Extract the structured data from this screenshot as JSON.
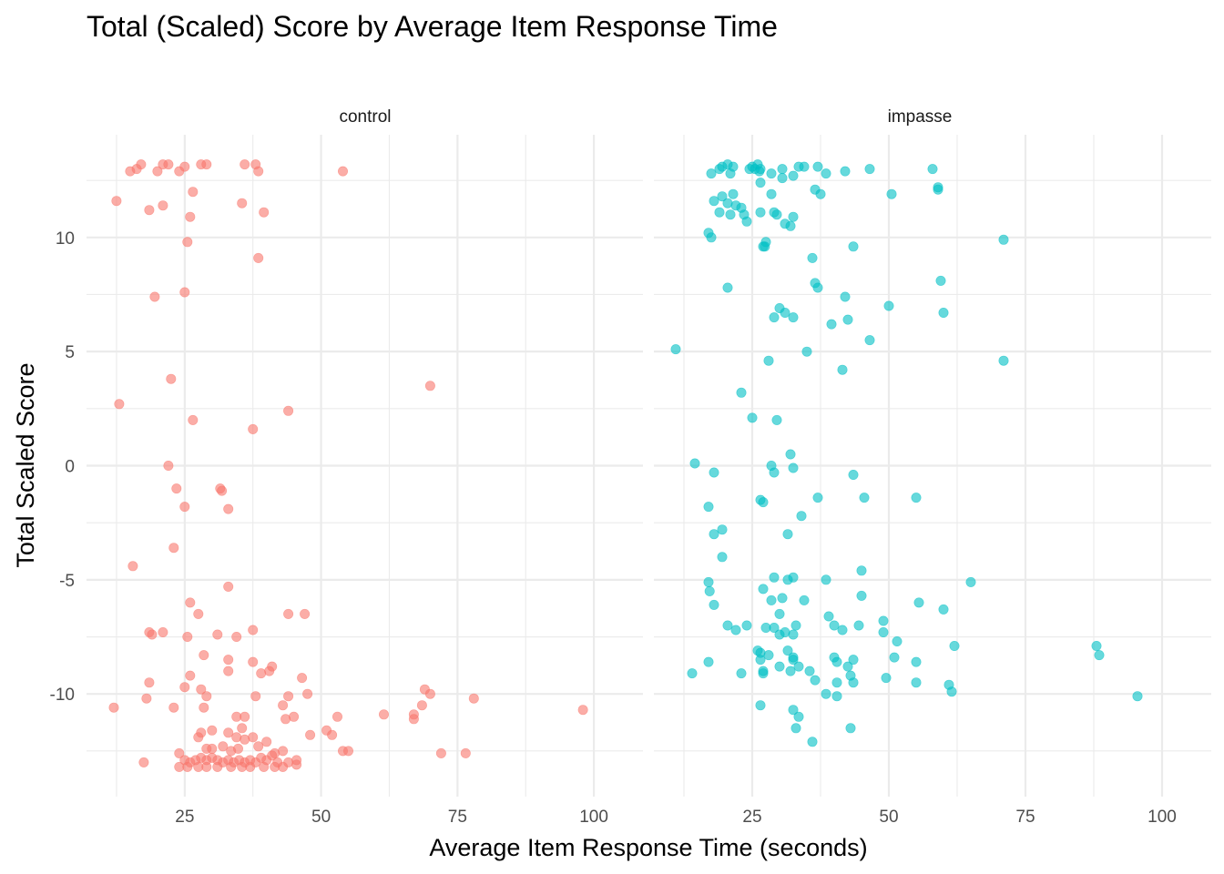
{
  "chart_data": {
    "type": "scatter",
    "title": "Total (Scaled) Score by Average Item Response Time",
    "xlabel": "Average Item Response Time (seconds)",
    "ylabel": "Total Scaled Score",
    "xlim": [
      7,
      109
    ],
    "ylim": [
      -14.5,
      14.5
    ],
    "x_ticks": [
      25,
      50,
      75,
      100
    ],
    "x_tick_labels": [
      "25",
      "50",
      "75",
      "100"
    ],
    "y_ticks": [
      -10,
      -5,
      0,
      5,
      10
    ],
    "y_tick_labels": [
      "-10",
      "-5",
      "0",
      "5",
      "10"
    ],
    "grid": true,
    "legend": "none",
    "panels": [
      {
        "name": "control",
        "color": "#F8766D",
        "points": [
          [
            15.0,
            12.9
          ],
          [
            16.2,
            13.0
          ],
          [
            17.0,
            13.2
          ],
          [
            20.0,
            12.9
          ],
          [
            21.0,
            13.2
          ],
          [
            22.0,
            13.2
          ],
          [
            24.0,
            12.9
          ],
          [
            25.0,
            13.1
          ],
          [
            28.0,
            13.2
          ],
          [
            29.0,
            13.2
          ],
          [
            36.0,
            13.2
          ],
          [
            38.0,
            13.2
          ],
          [
            38.5,
            12.9
          ],
          [
            54.0,
            12.9
          ],
          [
            12.5,
            11.6
          ],
          [
            18.5,
            11.2
          ],
          [
            21.0,
            11.4
          ],
          [
            26.5,
            12.0
          ],
          [
            26.0,
            10.9
          ],
          [
            35.5,
            11.5
          ],
          [
            39.5,
            11.1
          ],
          [
            25.5,
            9.8
          ],
          [
            38.5,
            9.1
          ],
          [
            19.5,
            7.4
          ],
          [
            25.0,
            7.6
          ],
          [
            22.5,
            3.8
          ],
          [
            70.0,
            3.5
          ],
          [
            13.0,
            2.7
          ],
          [
            26.5,
            2.0
          ],
          [
            37.5,
            1.6
          ],
          [
            44.0,
            2.4
          ],
          [
            22.0,
            0.0
          ],
          [
            23.5,
            -1.0
          ],
          [
            31.5,
            -1.0
          ],
          [
            31.8,
            -1.1
          ],
          [
            25.0,
            -1.8
          ],
          [
            33.0,
            -1.9
          ],
          [
            23.0,
            -3.6
          ],
          [
            15.5,
            -4.4
          ],
          [
            33.0,
            -5.3
          ],
          [
            26.0,
            -6.0
          ],
          [
            27.5,
            -6.5
          ],
          [
            44.0,
            -6.5
          ],
          [
            47.0,
            -6.5
          ],
          [
            18.5,
            -7.3
          ],
          [
            19.0,
            -7.4
          ],
          [
            21.0,
            -7.3
          ],
          [
            25.5,
            -7.5
          ],
          [
            31.0,
            -7.4
          ],
          [
            34.5,
            -7.5
          ],
          [
            37.5,
            -7.2
          ],
          [
            28.5,
            -8.3
          ],
          [
            33.0,
            -8.5
          ],
          [
            37.5,
            -8.6
          ],
          [
            41.0,
            -8.8
          ],
          [
            33.0,
            -9.0
          ],
          [
            26.0,
            -9.2
          ],
          [
            39.0,
            -9.1
          ],
          [
            40.5,
            -9.0
          ],
          [
            46.5,
            -9.3
          ],
          [
            18.5,
            -9.5
          ],
          [
            25.0,
            -9.7
          ],
          [
            28.0,
            -9.8
          ],
          [
            47.5,
            -10.0
          ],
          [
            69.0,
            -9.8
          ],
          [
            70.0,
            -10.0
          ],
          [
            18.0,
            -10.2
          ],
          [
            29.0,
            -10.1
          ],
          [
            38.0,
            -10.1
          ],
          [
            44.0,
            -10.1
          ],
          [
            78.0,
            -10.2
          ],
          [
            12.0,
            -10.6
          ],
          [
            23.0,
            -10.6
          ],
          [
            28.5,
            -10.6
          ],
          [
            43.0,
            -10.5
          ],
          [
            68.5,
            -10.5
          ],
          [
            61.5,
            -10.9
          ],
          [
            67.0,
            -10.9
          ],
          [
            67.0,
            -11.1
          ],
          [
            98.0,
            -10.7
          ],
          [
            34.5,
            -11.0
          ],
          [
            36.0,
            -11.0
          ],
          [
            43.5,
            -11.1
          ],
          [
            45.0,
            -11.0
          ],
          [
            53.0,
            -11.0
          ],
          [
            33.0,
            -11.7
          ],
          [
            35.5,
            -11.5
          ],
          [
            28.0,
            -11.7
          ],
          [
            30.0,
            -11.6
          ],
          [
            34.5,
            -11.9
          ],
          [
            37.5,
            -11.9
          ],
          [
            48.0,
            -11.8
          ],
          [
            51.0,
            -11.6
          ],
          [
            52.0,
            -11.8
          ],
          [
            27.5,
            -11.9
          ],
          [
            29.0,
            -12.4
          ],
          [
            30.0,
            -12.4
          ],
          [
            32.0,
            -12.3
          ],
          [
            33.5,
            -12.5
          ],
          [
            34.8,
            -12.4
          ],
          [
            36.0,
            -12.0
          ],
          [
            38.5,
            -12.3
          ],
          [
            40.0,
            -12.1
          ],
          [
            41.0,
            -12.7
          ],
          [
            41.5,
            -12.6
          ],
          [
            43.0,
            -12.5
          ],
          [
            54.0,
            -12.5
          ],
          [
            55.0,
            -12.5
          ],
          [
            24.0,
            -12.6
          ],
          [
            25.0,
            -12.9
          ],
          [
            26.0,
            -13.0
          ],
          [
            27.0,
            -12.9
          ],
          [
            28.0,
            -12.8
          ],
          [
            29.0,
            -12.9
          ],
          [
            30.0,
            -12.8
          ],
          [
            31.0,
            -12.9
          ],
          [
            32.0,
            -13.0
          ],
          [
            33.0,
            -12.9
          ],
          [
            34.0,
            -13.0
          ],
          [
            35.0,
            -12.9
          ],
          [
            36.0,
            -13.0
          ],
          [
            37.0,
            -12.9
          ],
          [
            38.0,
            -13.0
          ],
          [
            39.0,
            -12.8
          ],
          [
            40.0,
            -12.9
          ],
          [
            42.0,
            -13.0
          ],
          [
            44.0,
            -13.0
          ],
          [
            45.5,
            -12.9
          ],
          [
            24.0,
            -13.2
          ],
          [
            25.5,
            -13.2
          ],
          [
            27.5,
            -13.2
          ],
          [
            29.0,
            -13.2
          ],
          [
            31.0,
            -13.2
          ],
          [
            33.5,
            -13.2
          ],
          [
            35.5,
            -13.2
          ],
          [
            37.0,
            -13.2
          ],
          [
            39.5,
            -13.2
          ],
          [
            41.5,
            -13.2
          ],
          [
            43.0,
            -13.2
          ],
          [
            45.5,
            -13.1
          ],
          [
            17.5,
            -13.0
          ],
          [
            72.0,
            -12.6
          ],
          [
            76.5,
            -12.6
          ]
        ]
      },
      {
        "name": "impasse",
        "color": "#00BFC4",
        "points": [
          [
            17.5,
            12.8
          ],
          [
            19.0,
            13.0
          ],
          [
            19.5,
            13.1
          ],
          [
            20.5,
            13.2
          ],
          [
            21.0,
            12.8
          ],
          [
            21.5,
            13.1
          ],
          [
            24.5,
            13.0
          ],
          [
            25.0,
            13.1
          ],
          [
            25.5,
            13.0
          ],
          [
            26.0,
            13.2
          ],
          [
            26.3,
            12.9
          ],
          [
            26.5,
            13.0
          ],
          [
            28.5,
            12.8
          ],
          [
            30.5,
            13.0
          ],
          [
            32.5,
            12.7
          ],
          [
            33.5,
            13.1
          ],
          [
            34.5,
            13.1
          ],
          [
            37.0,
            13.1
          ],
          [
            38.5,
            12.8
          ],
          [
            42.0,
            12.9
          ],
          [
            46.5,
            13.0
          ],
          [
            58.0,
            13.0
          ],
          [
            26.5,
            12.4
          ],
          [
            30.5,
            12.6
          ],
          [
            36.5,
            12.1
          ],
          [
            59.0,
            12.2
          ],
          [
            59.0,
            12.1
          ],
          [
            18.0,
            11.6
          ],
          [
            19.5,
            11.8
          ],
          [
            20.5,
            11.5
          ],
          [
            21.5,
            11.9
          ],
          [
            22.0,
            11.4
          ],
          [
            23.0,
            11.3
          ],
          [
            23.5,
            11.0
          ],
          [
            24.0,
            10.7
          ],
          [
            26.5,
            11.1
          ],
          [
            28.5,
            11.9
          ],
          [
            29.0,
            11.1
          ],
          [
            29.5,
            11.0
          ],
          [
            31.0,
            10.6
          ],
          [
            32.0,
            10.5
          ],
          [
            32.5,
            10.9
          ],
          [
            37.5,
            11.9
          ],
          [
            50.5,
            11.9
          ],
          [
            19.0,
            11.1
          ],
          [
            21.0,
            11.0
          ],
          [
            17.0,
            10.2
          ],
          [
            17.5,
            10.0
          ],
          [
            27.0,
            9.6
          ],
          [
            27.5,
            9.8
          ],
          [
            27.3,
            9.6
          ],
          [
            36.0,
            9.1
          ],
          [
            43.5,
            9.6
          ],
          [
            71.0,
            9.9
          ],
          [
            20.5,
            7.8
          ],
          [
            30.0,
            6.9
          ],
          [
            31.0,
            6.7
          ],
          [
            29.0,
            6.5
          ],
          [
            32.5,
            6.5
          ],
          [
            36.5,
            8.0
          ],
          [
            37.0,
            7.8
          ],
          [
            42.0,
            7.4
          ],
          [
            39.5,
            6.2
          ],
          [
            42.5,
            6.4
          ],
          [
            46.5,
            5.5
          ],
          [
            50.0,
            7.0
          ],
          [
            59.5,
            8.1
          ],
          [
            60.0,
            6.7
          ],
          [
            11.0,
            5.1
          ],
          [
            28.0,
            4.6
          ],
          [
            35.0,
            5.0
          ],
          [
            41.5,
            4.2
          ],
          [
            71.0,
            4.6
          ],
          [
            23.0,
            3.2
          ],
          [
            25.0,
            2.1
          ],
          [
            29.5,
            2.0
          ],
          [
            32.0,
            0.5
          ],
          [
            32.5,
            -0.1
          ],
          [
            28.5,
            0.0
          ],
          [
            29.0,
            -0.3
          ],
          [
            14.5,
            0.1
          ],
          [
            18.0,
            -0.3
          ],
          [
            43.5,
            -0.4
          ],
          [
            26.5,
            -1.5
          ],
          [
            27.0,
            -1.6
          ],
          [
            37.0,
            -1.4
          ],
          [
            45.5,
            -1.4
          ],
          [
            55.0,
            -1.4
          ],
          [
            17.0,
            -1.8
          ],
          [
            34.0,
            -2.2
          ],
          [
            18.0,
            -3.0
          ],
          [
            19.5,
            -2.8
          ],
          [
            31.5,
            -3.0
          ],
          [
            19.5,
            -4.0
          ],
          [
            17.0,
            -5.1
          ],
          [
            17.2,
            -5.5
          ],
          [
            29.0,
            -4.9
          ],
          [
            31.5,
            -5.0
          ],
          [
            32.5,
            -4.9
          ],
          [
            38.5,
            -5.0
          ],
          [
            45.0,
            -4.6
          ],
          [
            65.0,
            -5.1
          ],
          [
            27.0,
            -5.4
          ],
          [
            45.0,
            -5.7
          ],
          [
            18.0,
            -6.1
          ],
          [
            28.5,
            -5.9
          ],
          [
            30.5,
            -5.8
          ],
          [
            34.5,
            -5.9
          ],
          [
            55.5,
            -6.0
          ],
          [
            60.0,
            -6.3
          ],
          [
            30.0,
            -6.5
          ],
          [
            39.0,
            -6.6
          ],
          [
            49.0,
            -6.8
          ],
          [
            20.5,
            -7.0
          ],
          [
            22.0,
            -7.2
          ],
          [
            24.0,
            -7.0
          ],
          [
            27.5,
            -7.1
          ],
          [
            29.0,
            -7.1
          ],
          [
            30.0,
            -7.4
          ],
          [
            31.0,
            -7.3
          ],
          [
            33.0,
            -7.0
          ],
          [
            32.5,
            -7.4
          ],
          [
            40.0,
            -7.0
          ],
          [
            41.5,
            -7.2
          ],
          [
            44.5,
            -7.0
          ],
          [
            49.0,
            -7.3
          ],
          [
            51.5,
            -7.7
          ],
          [
            62.0,
            -7.9
          ],
          [
            88.0,
            -7.9
          ],
          [
            88.5,
            -8.3
          ],
          [
            17.0,
            -8.6
          ],
          [
            26.0,
            -8.1
          ],
          [
            26.5,
            -8.2
          ],
          [
            28.0,
            -8.3
          ],
          [
            26.5,
            -8.5
          ],
          [
            31.5,
            -8.1
          ],
          [
            32.5,
            -8.4
          ],
          [
            32.5,
            -8.5
          ],
          [
            40.0,
            -8.4
          ],
          [
            40.5,
            -8.6
          ],
          [
            42.5,
            -8.8
          ],
          [
            43.5,
            -8.5
          ],
          [
            51.0,
            -8.4
          ],
          [
            55.0,
            -8.6
          ],
          [
            14.0,
            -9.1
          ],
          [
            23.0,
            -9.1
          ],
          [
            27.0,
            -9.0
          ],
          [
            27.0,
            -9.1
          ],
          [
            30.0,
            -8.8
          ],
          [
            32.0,
            -9.0
          ],
          [
            33.5,
            -8.8
          ],
          [
            35.5,
            -9.0
          ],
          [
            36.5,
            -9.4
          ],
          [
            40.5,
            -9.5
          ],
          [
            43.0,
            -9.2
          ],
          [
            43.5,
            -9.5
          ],
          [
            49.5,
            -9.3
          ],
          [
            55.0,
            -9.5
          ],
          [
            61.0,
            -9.6
          ],
          [
            61.5,
            -9.9
          ],
          [
            38.5,
            -10.0
          ],
          [
            40.5,
            -10.1
          ],
          [
            26.5,
            -10.5
          ],
          [
            32.5,
            -10.7
          ],
          [
            33.5,
            -11.0
          ],
          [
            33.0,
            -11.5
          ],
          [
            43.0,
            -11.5
          ],
          [
            36.0,
            -12.1
          ],
          [
            95.5,
            -10.1
          ]
        ]
      }
    ]
  }
}
